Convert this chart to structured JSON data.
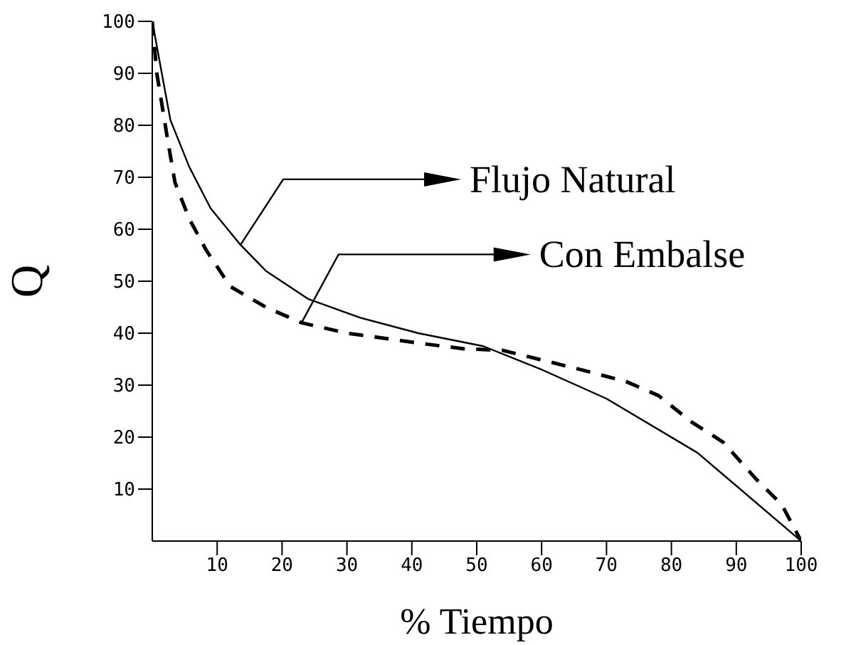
{
  "chart_data": {
    "type": "line",
    "xlabel": "% Tiempo",
    "ylabel": "Q",
    "xlim": [
      0,
      100
    ],
    "xticks": [
      {
        "value": 10,
        "label": "10"
      },
      {
        "value": 20,
        "label": "20"
      },
      {
        "value": 30,
        "label": "30"
      },
      {
        "value": 40,
        "label": "40"
      },
      {
        "value": 50,
        "label": "50"
      },
      {
        "value": 60,
        "label": "60"
      },
      {
        "value": 70,
        "label": "70"
      },
      {
        "value": 80,
        "label": "80"
      },
      {
        "value": 90,
        "label": "90"
      },
      {
        "value": 100,
        "label": "100"
      }
    ],
    "ylim": [
      0,
      100
    ],
    "yticks": [
      10,
      20,
      30,
      40,
      50,
      60,
      70,
      80,
      90,
      100
    ],
    "marker": "none",
    "series": [
      {
        "color": "#000000",
        "line_style": "solid",
        "x": [
          0,
          2.8,
          5.7,
          9,
          13.6,
          17.5,
          24,
          32,
          41,
          51,
          60,
          70,
          84,
          100
        ],
        "values": [
          100,
          81,
          72,
          64,
          57,
          52,
          46.6,
          43,
          40,
          37.5,
          33,
          27.4,
          17,
          0
        ]
      },
      {
        "color": "#000000",
        "line_style": "dashed",
        "x": [
          0,
          0.7,
          2.4,
          3.5,
          5.7,
          8.3,
          12,
          17.5,
          23,
          30,
          41.6,
          48,
          54,
          66,
          73,
          78,
          83,
          88,
          93,
          97,
          100
        ],
        "values": [
          100,
          90,
          77,
          69,
          62,
          56,
          49,
          45,
          42,
          40,
          38,
          37,
          36.7,
          33,
          30.7,
          28,
          23,
          19,
          12,
          7,
          0
        ]
      }
    ],
    "annotations": [
      {
        "text": "Flujo Natural",
        "x": 13.6,
        "y": 57
      },
      {
        "text": "Con Embalse",
        "x": 23,
        "y": 42
      }
    ]
  }
}
